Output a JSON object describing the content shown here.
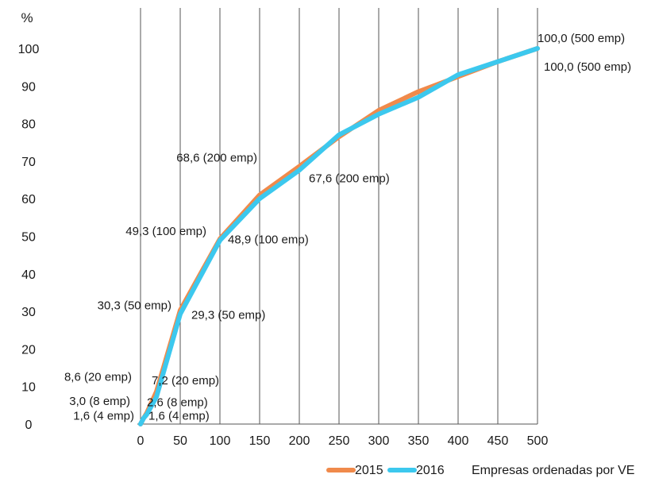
{
  "chart_data": {
    "type": "line",
    "ylabel": "%",
    "xlabel": "Empresas ordenadas por VE",
    "x": [
      0,
      4,
      8,
      20,
      50,
      100,
      150,
      200,
      250,
      300,
      350,
      400,
      450,
      500
    ],
    "xticks": [
      0,
      50,
      100,
      150,
      200,
      250,
      300,
      350,
      400,
      450,
      500
    ],
    "yticks": [
      0,
      10,
      20,
      30,
      40,
      50,
      60,
      70,
      80,
      90,
      100
    ],
    "xlim": [
      0,
      500
    ],
    "ylim": [
      0,
      100
    ],
    "grid": "vertical",
    "legend_position": "bottom",
    "colors": {
      "2015": "#f08a4b",
      "2016": "#3cc8ee",
      "grid": "#555555"
    },
    "series": [
      {
        "name": "2015",
        "values": [
          0,
          1.6,
          3.0,
          8.6,
          30.3,
          49.3,
          61.0,
          68.6,
          76.5,
          83.5,
          88.5,
          92.5,
          96.5,
          100.0
        ]
      },
      {
        "name": "2016",
        "values": [
          0,
          1.6,
          2.6,
          7.2,
          29.3,
          48.9,
          60.0,
          67.6,
          77.0,
          82.5,
          87.0,
          93.0,
          96.5,
          100.0
        ]
      }
    ],
    "annotations": [
      {
        "text": "1,6 (4 emp)",
        "series": "2015",
        "x": 4,
        "y": 1.6
      },
      {
        "text": "3,0 (8 emp)",
        "series": "2015",
        "x": 8,
        "y": 3.0
      },
      {
        "text": "8,6 (20 emp)",
        "series": "2015",
        "x": 20,
        "y": 8.6
      },
      {
        "text": "30,3 (50 emp)",
        "series": "2015",
        "x": 50,
        "y": 30.3
      },
      {
        "text": "49,3 (100 emp)",
        "series": "2015",
        "x": 100,
        "y": 49.3
      },
      {
        "text": "68,6 (200 emp)",
        "series": "2015",
        "x": 200,
        "y": 68.6
      },
      {
        "text": "100,0 (500 emp)",
        "series": "2015",
        "x": 500,
        "y": 100.0
      },
      {
        "text": "1,6 (4 emp)",
        "series": "2016",
        "x": 4,
        "y": 1.6
      },
      {
        "text": "2,6 (8 emp)",
        "series": "2016",
        "x": 8,
        "y": 2.6
      },
      {
        "text": "7,2 (20 emp)",
        "series": "2016",
        "x": 20,
        "y": 7.2
      },
      {
        "text": "29,3 (50 emp)",
        "series": "2016",
        "x": 50,
        "y": 29.3
      },
      {
        "text": "48,9 (100 emp)",
        "series": "2016",
        "x": 100,
        "y": 48.9
      },
      {
        "text": "67,6 (200 emp)",
        "series": "2016",
        "x": 200,
        "y": 67.6
      },
      {
        "text": "100,0 (500 emp)",
        "series": "2016",
        "x": 500,
        "y": 100.0
      }
    ]
  }
}
